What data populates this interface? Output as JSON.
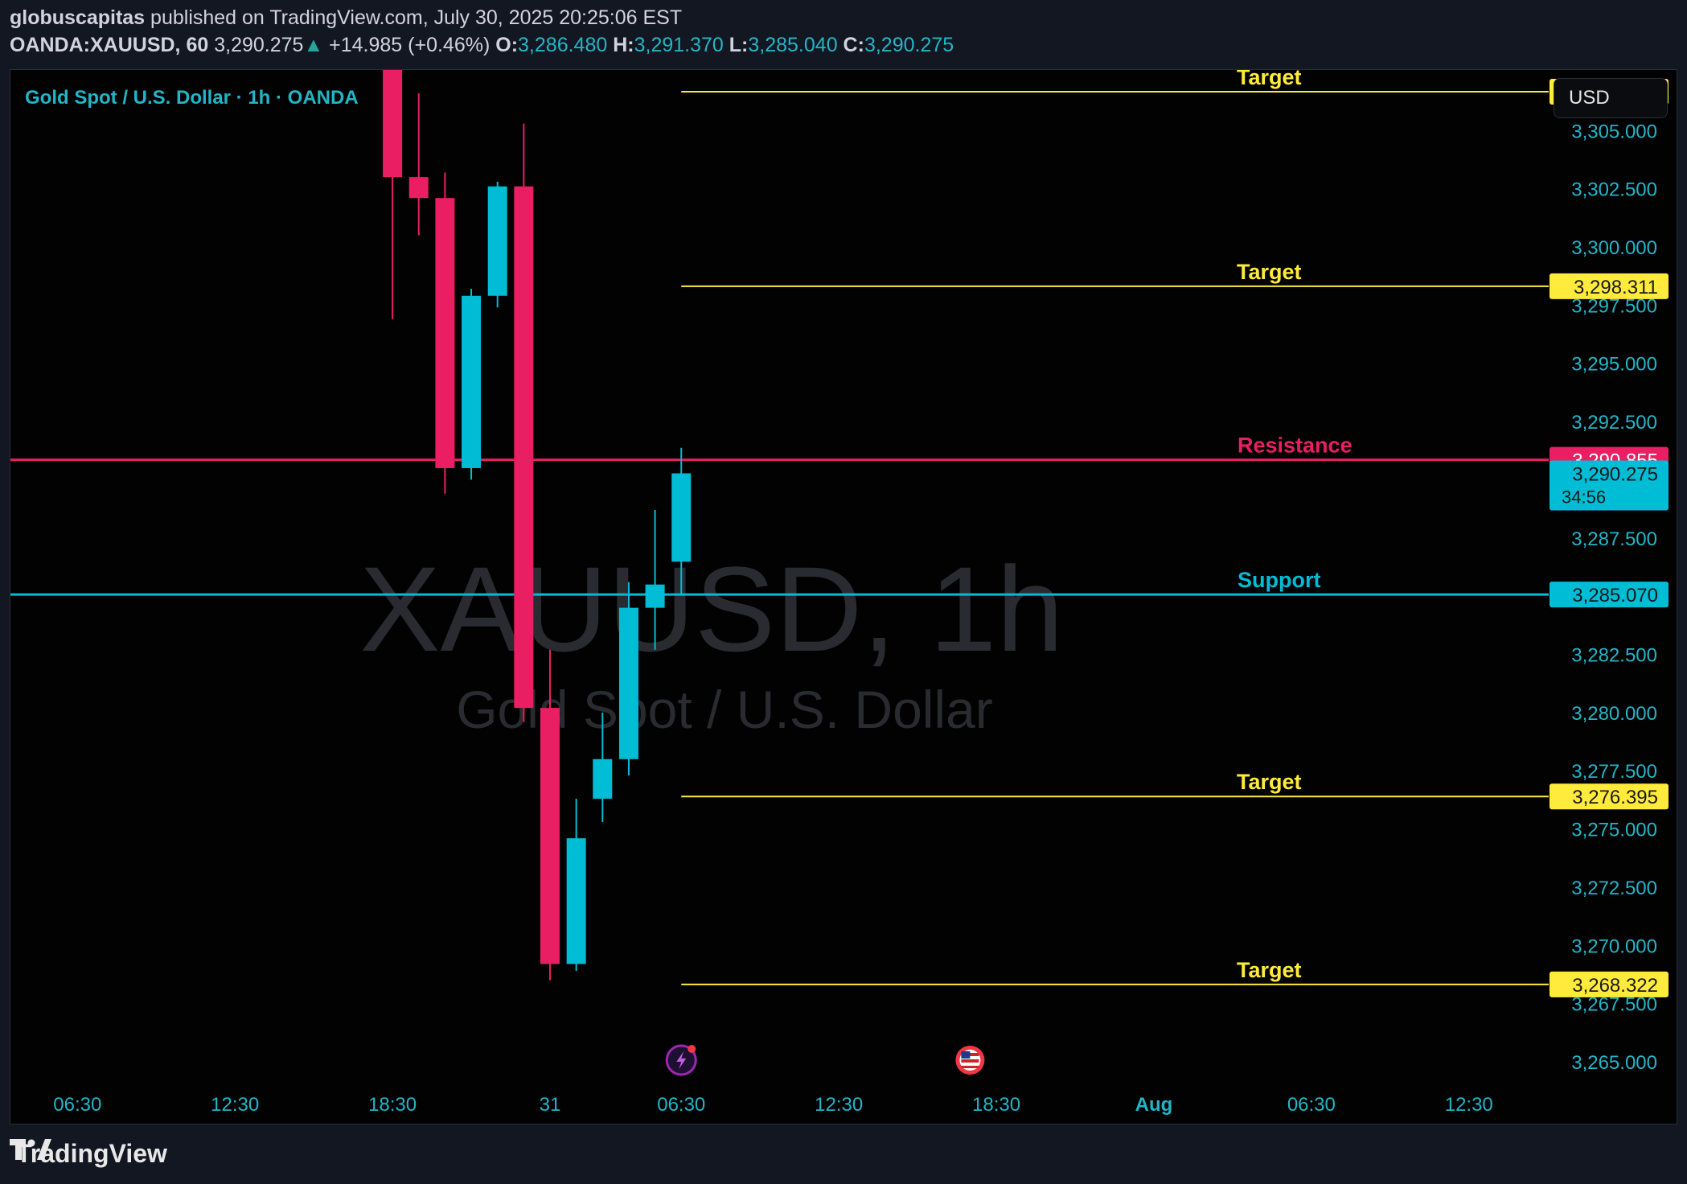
{
  "header": {
    "author": "globuscapitas",
    "published_text": "published on TradingView.com, July 30, 2025 20:25:06 EST",
    "symbol": "OANDA:XAUUSD, 60",
    "last": "3,290.275",
    "change_arrow": "▲",
    "change": "+14.985 (+0.46%)",
    "o_label": "O:",
    "o_value": "3,286.480",
    "h_label": "H:",
    "h_value": "3,291.370",
    "l_label": "L:",
    "l_value": "3,285.040",
    "c_label": "C:",
    "c_value": "3,290.275"
  },
  "currency_button": "USD",
  "footer": {
    "brand": "TradingView"
  },
  "chart_data": {
    "type": "candlestick",
    "title": "Gold Spot / U.S. Dollar · 1h · OANDA",
    "watermark_symbol": "XAUUSD, 1h",
    "watermark_name": "Gold Spot / U.S. Dollar",
    "colors": {
      "up": "#00bcd4",
      "down": "#e91e63",
      "target": "#ffeb3b",
      "resistance": "#e91e63",
      "support": "#00bcd4",
      "axis_text": "#22b5c7"
    },
    "x_ticks": [
      {
        "label": "06:30",
        "bar": -18
      },
      {
        "label": "12:30",
        "bar": -12
      },
      {
        "label": "18:30",
        "bar": -6
      },
      {
        "label": "31",
        "bar": 0
      },
      {
        "label": "06:30",
        "bar": 5
      },
      {
        "label": "12:30",
        "bar": 11
      },
      {
        "label": "18:30",
        "bar": 17
      },
      {
        "label": "Aug",
        "bar": 23,
        "bold": true
      },
      {
        "label": "06:30",
        "bar": 29
      },
      {
        "label": "12:30",
        "bar": 35
      }
    ],
    "y_ticks": [
      "3,305.000",
      "3,302.500",
      "3,300.000",
      "3,297.500",
      "3,295.000",
      "3,292.500",
      "3,290.000",
      "3,287.500",
      "3,285.000",
      "3,282.500",
      "3,280.000",
      "3,277.500",
      "3,275.000",
      "3,272.500",
      "3,270.000",
      "3,267.500",
      "3,265.000"
    ],
    "y_tick_values": [
      3305,
      3302.5,
      3300,
      3297.5,
      3295,
      3292.5,
      3290,
      3287.5,
      3285,
      3282.5,
      3280,
      3277.5,
      3275,
      3272.5,
      3270,
      3267.5,
      3265
    ],
    "ylim": [
      3264.0,
      3307.6
    ],
    "candles": [
      {
        "bar": -6,
        "o": 3307.6,
        "h": 3307.6,
        "l": 3296.9,
        "c": 3303.0
      },
      {
        "bar": -5,
        "o": 3303.0,
        "h": 3306.6,
        "l": 3300.5,
        "c": 3302.1
      },
      {
        "bar": -4,
        "o": 3302.1,
        "h": 3303.2,
        "l": 3289.4,
        "c": 3290.5
      },
      {
        "bar": -3,
        "o": 3290.5,
        "h": 3298.2,
        "l": 3290.0,
        "c": 3297.9
      },
      {
        "bar": -2,
        "o": 3297.9,
        "h": 3302.8,
        "l": 3297.4,
        "c": 3302.6
      },
      {
        "bar": -1,
        "o": 3302.6,
        "h": 3305.3,
        "l": 3279.6,
        "c": 3280.2
      },
      {
        "bar": 0,
        "o": 3280.2,
        "h": 3282.7,
        "l": 3268.5,
        "c": 3269.2
      },
      {
        "bar": 1,
        "o": 3269.2,
        "h": 3276.3,
        "l": 3268.9,
        "c": 3274.6
      },
      {
        "bar": 2,
        "o": 3276.3,
        "h": 3280.0,
        "l": 3275.3,
        "c": 3278.0
      },
      {
        "bar": 3,
        "o": 3278.0,
        "h": 3285.6,
        "l": 3277.3,
        "c": 3284.5
      },
      {
        "bar": 4,
        "o": 3284.5,
        "h": 3288.7,
        "l": 3282.7,
        "c": 3285.5
      },
      {
        "bar": 5,
        "o": 3286.48,
        "h": 3291.37,
        "l": 3285.04,
        "c": 3290.275
      }
    ],
    "levels": [
      {
        "name": "Target",
        "value": 3306.668,
        "label": "3,306.668",
        "kind": "target",
        "start_bar": 5
      },
      {
        "name": "Target",
        "value": 3298.311,
        "label": "3,298.311",
        "kind": "target",
        "start_bar": 5
      },
      {
        "name": "Resistance",
        "value": 3290.855,
        "label": "3,290.855",
        "kind": "resistance",
        "start_bar": -99
      },
      {
        "name": "Support",
        "value": 3285.07,
        "label": "3,285.070",
        "kind": "support",
        "start_bar": -99
      },
      {
        "name": "Target",
        "value": 3276.395,
        "label": "3,276.395",
        "kind": "target",
        "start_bar": 5
      },
      {
        "name": "Target",
        "value": 3268.322,
        "label": "3,268.322",
        "kind": "target",
        "start_bar": 5
      }
    ],
    "last_price": {
      "value": 3290.275,
      "label": "3,290.275",
      "countdown": "34:56"
    },
    "events": [
      {
        "bar": 5,
        "icon": "lightning-event-icon"
      },
      {
        "bar": 16,
        "icon": "us-flag-event-icon"
      }
    ]
  }
}
